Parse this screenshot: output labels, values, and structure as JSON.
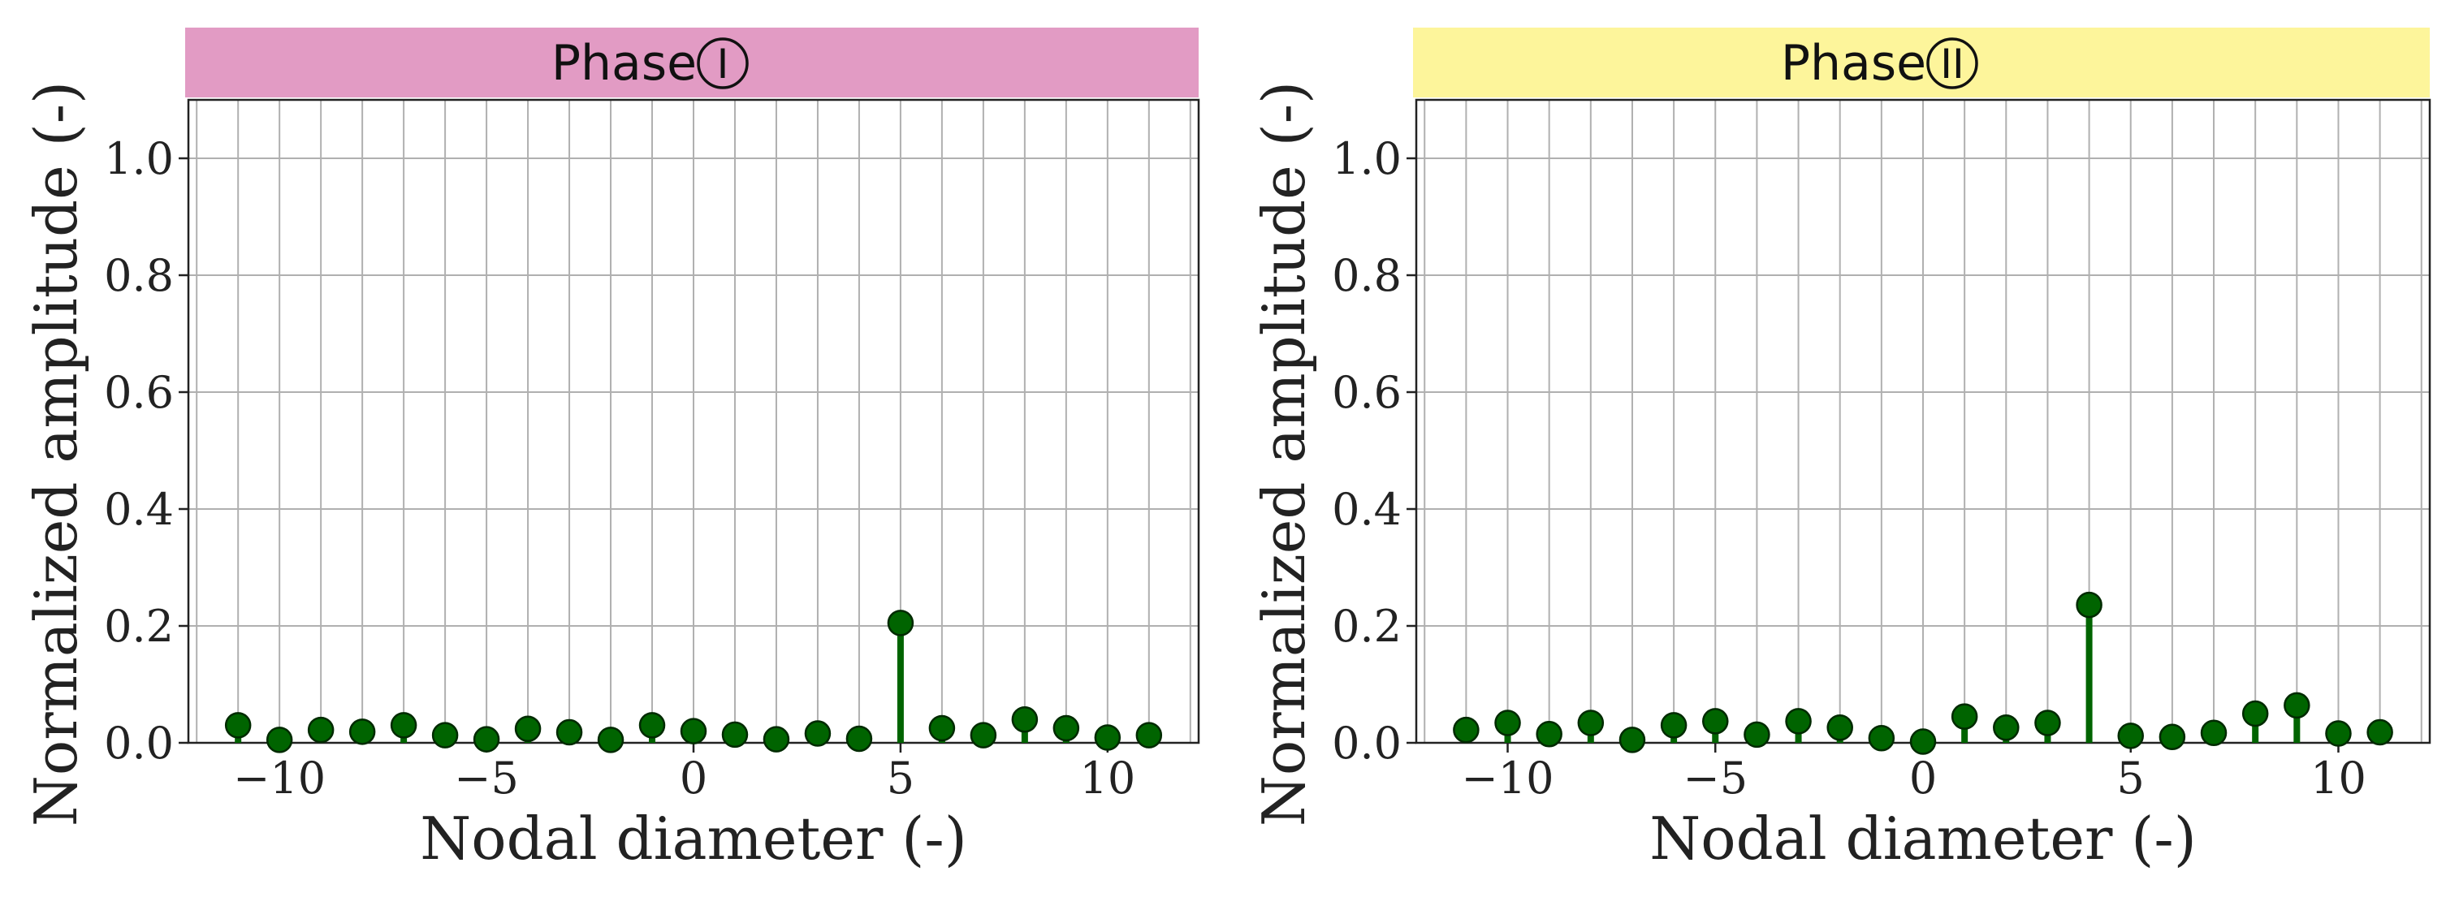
{
  "colors": {
    "marker": "#006400",
    "marker_edge": "#002a00",
    "grid": "#b0b0b0",
    "axis": "#222222",
    "phase1_banner": "#e29bc4",
    "phase2_banner": "#fdf59b"
  },
  "chart_data": [
    {
      "type": "stem",
      "title": "Phase",
      "title_badge": "I",
      "banner_color_key": "phase1_banner",
      "xlabel": "Nodal diameter (-)",
      "ylabel": "Normalized amplitude (-)",
      "xlim": [
        -12.2,
        12.2
      ],
      "ylim": [
        0,
        1.1
      ],
      "xticks": [
        -10,
        -5,
        0,
        5,
        10
      ],
      "xtick_labels": [
        "−10",
        "−5",
        "0",
        "5",
        "10"
      ],
      "yticks": [
        0,
        0.2,
        0.4,
        0.6,
        0.8,
        1.0
      ],
      "ytick_labels": [
        "0.0",
        "0.2",
        "0.4",
        "0.6",
        "0.8",
        "1.0"
      ],
      "grid": true,
      "x": [
        -11,
        -10,
        -9,
        -8,
        -7,
        -6,
        -5,
        -4,
        -3,
        -2,
        -1,
        0,
        1,
        2,
        3,
        4,
        5,
        6,
        7,
        8,
        9,
        10,
        11
      ],
      "values": [
        0.03,
        0.005,
        0.022,
        0.019,
        0.03,
        0.013,
        0.006,
        0.024,
        0.018,
        0.005,
        0.03,
        0.02,
        0.014,
        0.006,
        0.016,
        0.007,
        0.205,
        0.025,
        0.013,
        0.04,
        0.025,
        0.009,
        0.013
      ]
    },
    {
      "type": "stem",
      "title": "Phase",
      "title_badge": "II",
      "banner_color_key": "phase2_banner",
      "xlabel": "Nodal diameter (-)",
      "ylabel": "Normalized amplitude (-)",
      "xlim": [
        -12.2,
        12.2
      ],
      "ylim": [
        0,
        1.1
      ],
      "xticks": [
        -10,
        -5,
        0,
        5,
        10
      ],
      "xtick_labels": [
        "−10",
        "−5",
        "0",
        "5",
        "10"
      ],
      "yticks": [
        0,
        0.2,
        0.4,
        0.6,
        0.8,
        1.0
      ],
      "ytick_labels": [
        "0.0",
        "0.2",
        "0.4",
        "0.6",
        "0.8",
        "1.0"
      ],
      "grid": true,
      "x": [
        -11,
        -10,
        -9,
        -8,
        -7,
        -6,
        -5,
        -4,
        -3,
        -2,
        -1,
        0,
        1,
        2,
        3,
        4,
        5,
        6,
        7,
        8,
        9,
        10,
        11
      ],
      "values": [
        0.022,
        0.034,
        0.015,
        0.034,
        0.005,
        0.03,
        0.037,
        0.014,
        0.037,
        0.026,
        0.008,
        0.002,
        0.045,
        0.026,
        0.034,
        0.236,
        0.012,
        0.01,
        0.017,
        0.05,
        0.064,
        0.016,
        0.018
      ]
    }
  ]
}
